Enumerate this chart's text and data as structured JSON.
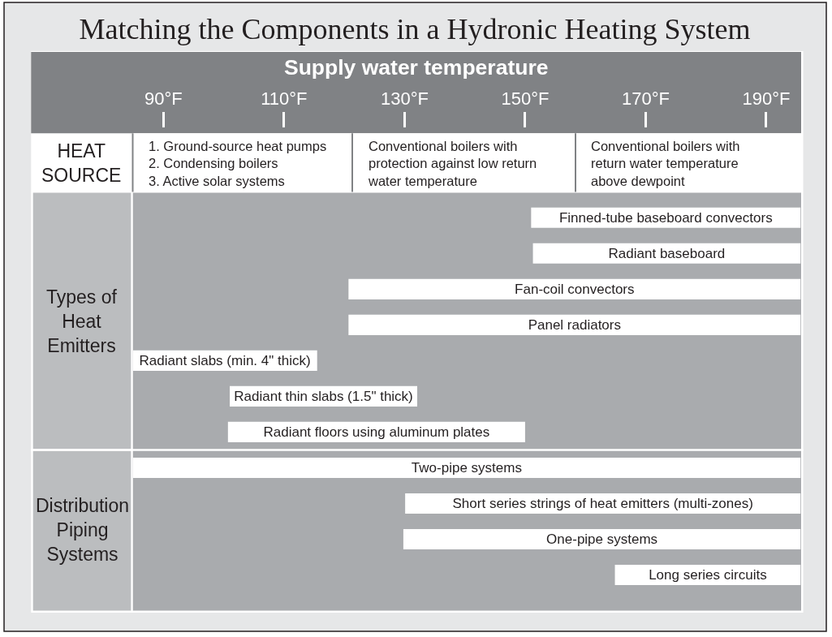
{
  "chart_data": [
    {
      "type": "bar",
      "orientation": "horizontal",
      "title": "Matching the Components in a Hydronic Heating System",
      "xlabel": "Supply water temperature",
      "ylabel": "Types of\nHeat\nEmitters",
      "categories": [
        "Finned-tube baseboard convectors",
        "Radiant baseboard",
        "Fan-coil convectors",
        "Panel radiators",
        "Radiant slabs (min. 4\" thick)",
        "Radiant thin slabs (1.5\" thick)",
        "Radiant floors using aluminum plates"
      ],
      "base": [
        151.0,
        151.3,
        120.7,
        120.7,
        84.9,
        101.0,
        100.7
      ],
      "values": [
        44.7,
        44.4,
        75.0,
        75.0,
        30.6,
        31.1,
        49.3
      ],
      "color": "#ffffff",
      "xlim": [
        84.9,
        195.8
      ],
      "xticks": [
        {
          "value": 90,
          "label": "90°F"
        },
        {
          "value": 110,
          "label": "110°F"
        },
        {
          "value": 130,
          "label": "130°F"
        },
        {
          "value": 150,
          "label": "150°F"
        },
        {
          "value": 170,
          "label": "170°F"
        },
        {
          "value": 190,
          "label": "190°F"
        }
      ],
      "annotations": [
        "HEAT\nSOURCE",
        "1. Ground-source heat pumps\n2. Condensing boilers\n3. Active solar systems",
        "Conventional boilers with\nprotection against low return\nwater temperature",
        "Conventional boilers with\nreturn water temperature\nabove dewpoint"
      ]
    },
    {
      "type": "bar",
      "orientation": "horizontal",
      "ylabel": "Distribution\nPiping\nSystems",
      "categories": [
        "Two-pipe systems",
        "Short series strings of heat emitters (multi-zones)",
        "One-pipe systems",
        "Long series circuits"
      ],
      "base": [
        84.9,
        130.1,
        129.8,
        164.9
      ],
      "values": [
        110.8,
        65.6,
        65.9,
        30.8
      ],
      "color": "#ffffff",
      "xlim": [
        84.9,
        195.8
      ],
      "tick_labels": "y"
    }
  ]
}
